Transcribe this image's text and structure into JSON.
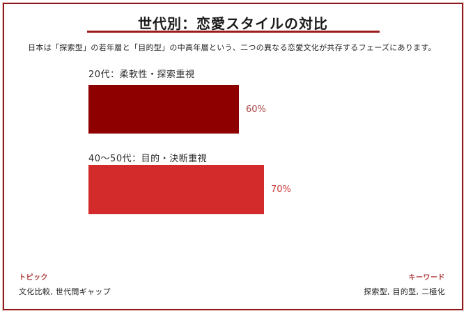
{
  "page": {
    "title": "世代別：恋愛スタイルの対比",
    "subtitle": "日本は「探索型」の若年層と「目的型」の中高年層という、二つの異なる恋愛文化が共存するフェーズにあります。"
  },
  "chart_data": {
    "type": "bar",
    "orientation": "horizontal",
    "title": "世代別：恋愛スタイルの対比",
    "categories": [
      "20代：柔軟性・探索重視",
      "40〜50代：目的・決断重視"
    ],
    "values": [
      60,
      70
    ],
    "value_labels": [
      "60%",
      "70%"
    ],
    "xlim": [
      0,
      100
    ],
    "grid": false,
    "legend": false,
    "bars": [
      {
        "label": "20代：柔軟性・探索重視",
        "value": 60,
        "value_label": "60%",
        "color": "#8e0000",
        "value_color": "#a94442"
      },
      {
        "label": "40〜50代：目的・決断重視",
        "value": 70,
        "value_label": "70%",
        "color": "#d32b2b",
        "value_color": "#cc3333"
      }
    ]
  },
  "footer": {
    "topics_label": "トピック",
    "topics_value": "文化比較, 世代間ギャップ",
    "keywords_label": "キーワード",
    "keywords_value": "探索型, 目的型, 二極化"
  },
  "colors": {
    "border": "#8c1a1a",
    "title_underline": "#9b1b1b",
    "bar_dark": "#8e0000",
    "bar_bright": "#d32b2b",
    "footer_label": "#b04040"
  }
}
